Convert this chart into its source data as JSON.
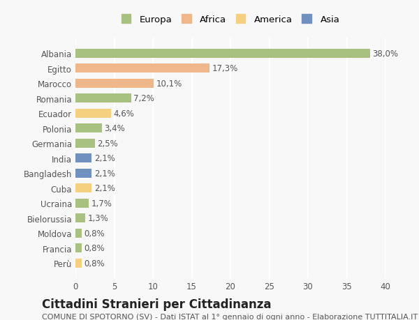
{
  "countries": [
    "Albania",
    "Egitto",
    "Marocco",
    "Romania",
    "Ecuador",
    "Polonia",
    "Germania",
    "India",
    "Bangladesh",
    "Cuba",
    "Ucraina",
    "Bielorussia",
    "Moldova",
    "Francia",
    "Perù"
  ],
  "values": [
    38.0,
    17.3,
    10.1,
    7.2,
    4.6,
    3.4,
    2.5,
    2.1,
    2.1,
    2.1,
    1.7,
    1.3,
    0.8,
    0.8,
    0.8
  ],
  "labels": [
    "38,0%",
    "17,3%",
    "10,1%",
    "7,2%",
    "4,6%",
    "3,4%",
    "2,5%",
    "2,1%",
    "2,1%",
    "2,1%",
    "1,7%",
    "1,3%",
    "0,8%",
    "0,8%",
    "0,8%"
  ],
  "colors": [
    "#a8c080",
    "#f0b88a",
    "#f0b88a",
    "#a8c080",
    "#f5d080",
    "#a8c080",
    "#a8c080",
    "#7090c0",
    "#7090c0",
    "#f5d080",
    "#a8c080",
    "#a8c080",
    "#a8c080",
    "#a8c080",
    "#f5d080"
  ],
  "continent": [
    "Europa",
    "Africa",
    "Africa",
    "Europa",
    "America",
    "Europa",
    "Europa",
    "Asia",
    "Asia",
    "America",
    "Europa",
    "Europa",
    "Europa",
    "Europa",
    "America"
  ],
  "legend_labels": [
    "Europa",
    "Africa",
    "America",
    "Asia"
  ],
  "legend_colors": [
    "#a8c080",
    "#f0b88a",
    "#f5d080",
    "#7090c0"
  ],
  "title": "Cittadini Stranieri per Cittadinanza",
  "subtitle": "COMUNE DI SPOTORNO (SV) - Dati ISTAT al 1° gennaio di ogni anno - Elaborazione TUTTITALIA.IT",
  "xlim": [
    0,
    40
  ],
  "xticks": [
    0,
    5,
    10,
    15,
    20,
    25,
    30,
    35,
    40
  ],
  "background_color": "#f8f8f8",
  "grid_color": "#ffffff",
  "bar_height": 0.6,
  "label_fontsize": 8.5,
  "tick_fontsize": 8.5,
  "title_fontsize": 12,
  "subtitle_fontsize": 8
}
